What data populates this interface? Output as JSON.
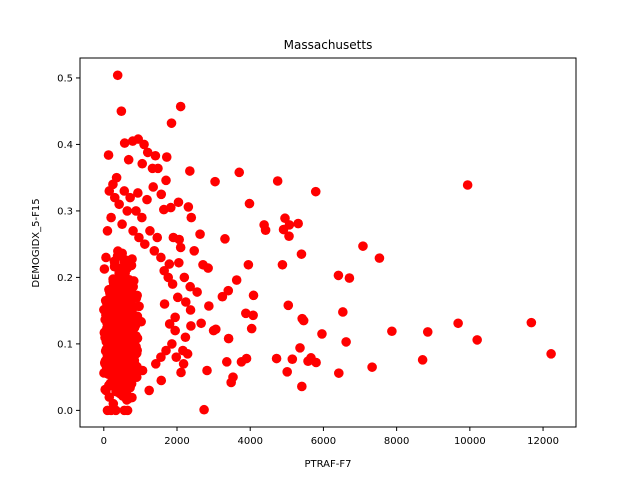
{
  "chart_data": {
    "type": "scatter",
    "title": "Massachusetts",
    "xlabel": "PTRAF-F7",
    "ylabel": "DEMOGIDX_5-F15",
    "xlim": [
      -650,
      12900
    ],
    "ylim": [
      -0.025,
      0.53
    ],
    "x_ticks": [
      0,
      2000,
      4000,
      6000,
      8000,
      10000,
      12000
    ],
    "x_tick_labels": [
      "0",
      "2000",
      "4000",
      "6000",
      "8000",
      "10000",
      "12000"
    ],
    "y_ticks": [
      0.0,
      0.1,
      0.2,
      0.3,
      0.4,
      0.5
    ],
    "y_tick_labels": [
      "0.0",
      "0.1",
      "0.2",
      "0.3",
      "0.4",
      "0.5"
    ],
    "grid": false,
    "legend": "none",
    "marker_color": "#ff0000",
    "marker": "circle",
    "series": [
      {
        "points": [
          [
            380,
            0.504
          ],
          [
            480,
            0.45
          ],
          [
            2100,
            0.457
          ],
          [
            1850,
            0.432
          ],
          [
            940,
            0.408
          ],
          [
            790,
            0.405
          ],
          [
            570,
            0.402
          ],
          [
            1100,
            0.4
          ],
          [
            1200,
            0.388
          ],
          [
            1410,
            0.383
          ],
          [
            1720,
            0.381
          ],
          [
            130,
            0.384
          ],
          [
            680,
            0.377
          ],
          [
            1050,
            0.371
          ],
          [
            1330,
            0.364
          ],
          [
            1480,
            0.364
          ],
          [
            2350,
            0.36
          ],
          [
            3700,
            0.358
          ],
          [
            1700,
            0.346
          ],
          [
            3040,
            0.344
          ],
          [
            4750,
            0.345
          ],
          [
            9940,
            0.339
          ],
          [
            1350,
            0.336
          ],
          [
            5790,
            0.329
          ],
          [
            1570,
            0.325
          ],
          [
            930,
            0.327
          ],
          [
            1180,
            0.317
          ],
          [
            2040,
            0.313
          ],
          [
            3980,
            0.311
          ],
          [
            2310,
            0.306
          ],
          [
            1830,
            0.305
          ],
          [
            1640,
            0.302
          ],
          [
            2390,
            0.29
          ],
          [
            4950,
            0.289
          ],
          [
            5310,
            0.281
          ],
          [
            4380,
            0.279
          ],
          [
            5070,
            0.279
          ],
          [
            4420,
            0.271
          ],
          [
            4910,
            0.272
          ],
          [
            3310,
            0.258
          ],
          [
            5060,
            0.262
          ],
          [
            1900,
            0.26
          ],
          [
            2060,
            0.257
          ],
          [
            2630,
            0.265
          ],
          [
            7080,
            0.247
          ],
          [
            2470,
            0.24
          ],
          [
            5400,
            0.235
          ],
          [
            7530,
            0.229
          ],
          [
            2050,
            0.222
          ],
          [
            2710,
            0.219
          ],
          [
            3950,
            0.219
          ],
          [
            4880,
            0.219
          ],
          [
            2850,
            0.214
          ],
          [
            6410,
            0.203
          ],
          [
            6710,
            0.199
          ],
          [
            3630,
            0.196
          ],
          [
            2360,
            0.186
          ],
          [
            3400,
            0.18
          ],
          [
            4090,
            0.173
          ],
          [
            2550,
            0.178
          ],
          [
            2870,
            0.157
          ],
          [
            3240,
            0.171
          ],
          [
            5040,
            0.158
          ],
          [
            2240,
            0.163
          ],
          [
            2370,
            0.151
          ],
          [
            3880,
            0.146
          ],
          [
            6530,
            0.148
          ],
          [
            4080,
            0.143
          ],
          [
            5420,
            0.138
          ],
          [
            5460,
            0.135
          ],
          [
            2380,
            0.127
          ],
          [
            2660,
            0.131
          ],
          [
            3000,
            0.12
          ],
          [
            3060,
            0.122
          ],
          [
            4040,
            0.123
          ],
          [
            5960,
            0.115
          ],
          [
            7870,
            0.119
          ],
          [
            8850,
            0.118
          ],
          [
            9680,
            0.131
          ],
          [
            11680,
            0.132
          ],
          [
            10200,
            0.106
          ],
          [
            3410,
            0.108
          ],
          [
            6620,
            0.103
          ],
          [
            5360,
            0.094
          ],
          [
            4720,
            0.078
          ],
          [
            5150,
            0.077
          ],
          [
            3900,
            0.078
          ],
          [
            3760,
            0.073
          ],
          [
            3360,
            0.073
          ],
          [
            5660,
            0.079
          ],
          [
            5580,
            0.074
          ],
          [
            5800,
            0.072
          ],
          [
            7330,
            0.065
          ],
          [
            8710,
            0.076
          ],
          [
            12220,
            0.085
          ],
          [
            2820,
            0.06
          ],
          [
            5010,
            0.058
          ],
          [
            6420,
            0.056
          ],
          [
            3530,
            0.05
          ],
          [
            3480,
            0.042
          ],
          [
            5410,
            0.036
          ],
          [
            2740,
            0.001
          ],
          [
            2110,
            0.057
          ],
          [
            1570,
            0.045
          ],
          [
            60,
            0.23
          ],
          [
            100,
            0.27
          ],
          [
            150,
            0.33
          ],
          [
            200,
            0.29
          ],
          [
            250,
            0.34
          ],
          [
            300,
            0.32
          ],
          [
            350,
            0.35
          ],
          [
            420,
            0.31
          ],
          [
            500,
            0.28
          ],
          [
            560,
            0.33
          ],
          [
            640,
            0.3
          ],
          [
            720,
            0.32
          ],
          [
            800,
            0.27
          ],
          [
            880,
            0.3
          ],
          [
            960,
            0.26
          ],
          [
            1040,
            0.29
          ],
          [
            1120,
            0.25
          ],
          [
            1260,
            0.27
          ],
          [
            1380,
            0.24
          ],
          [
            1460,
            0.26
          ],
          [
            1560,
            0.23
          ],
          [
            1650,
            0.21
          ],
          [
            1760,
            0.2
          ],
          [
            1880,
            0.19
          ],
          [
            60,
            0.03
          ],
          [
            100,
            0.0
          ],
          [
            150,
            0.02
          ],
          [
            200,
            0.0
          ],
          [
            260,
            0.01
          ],
          [
            330,
            0.0
          ],
          [
            420,
            0.03
          ],
          [
            560,
            0.0
          ],
          [
            650,
            0.0
          ],
          [
            760,
            0.04
          ],
          [
            900,
            0.05
          ],
          [
            1060,
            0.06
          ],
          [
            1240,
            0.03
          ],
          [
            1420,
            0.07
          ],
          [
            1560,
            0.08
          ],
          [
            1700,
            0.09
          ],
          [
            1860,
            0.1
          ],
          [
            1980,
            0.08
          ],
          [
            2160,
            0.09
          ],
          [
            2230,
            0.11
          ],
          [
            1950,
            0.14
          ],
          [
            2020,
            0.17
          ],
          [
            1790,
            0.22
          ],
          [
            1660,
            0.16
          ],
          [
            2100,
            0.245
          ],
          [
            2200,
            0.2
          ],
          [
            1950,
            0.12
          ],
          [
            1800,
            0.13
          ],
          [
            2290,
            0.085
          ],
          [
            2180,
            0.07
          ]
        ],
        "dense_region": {
          "x_range": [
            0,
            1500
          ],
          "y_range": [
            0.0,
            0.26
          ],
          "approx_count": 900,
          "peak_x": 450,
          "peak_y": 0.12
        }
      }
    ]
  }
}
